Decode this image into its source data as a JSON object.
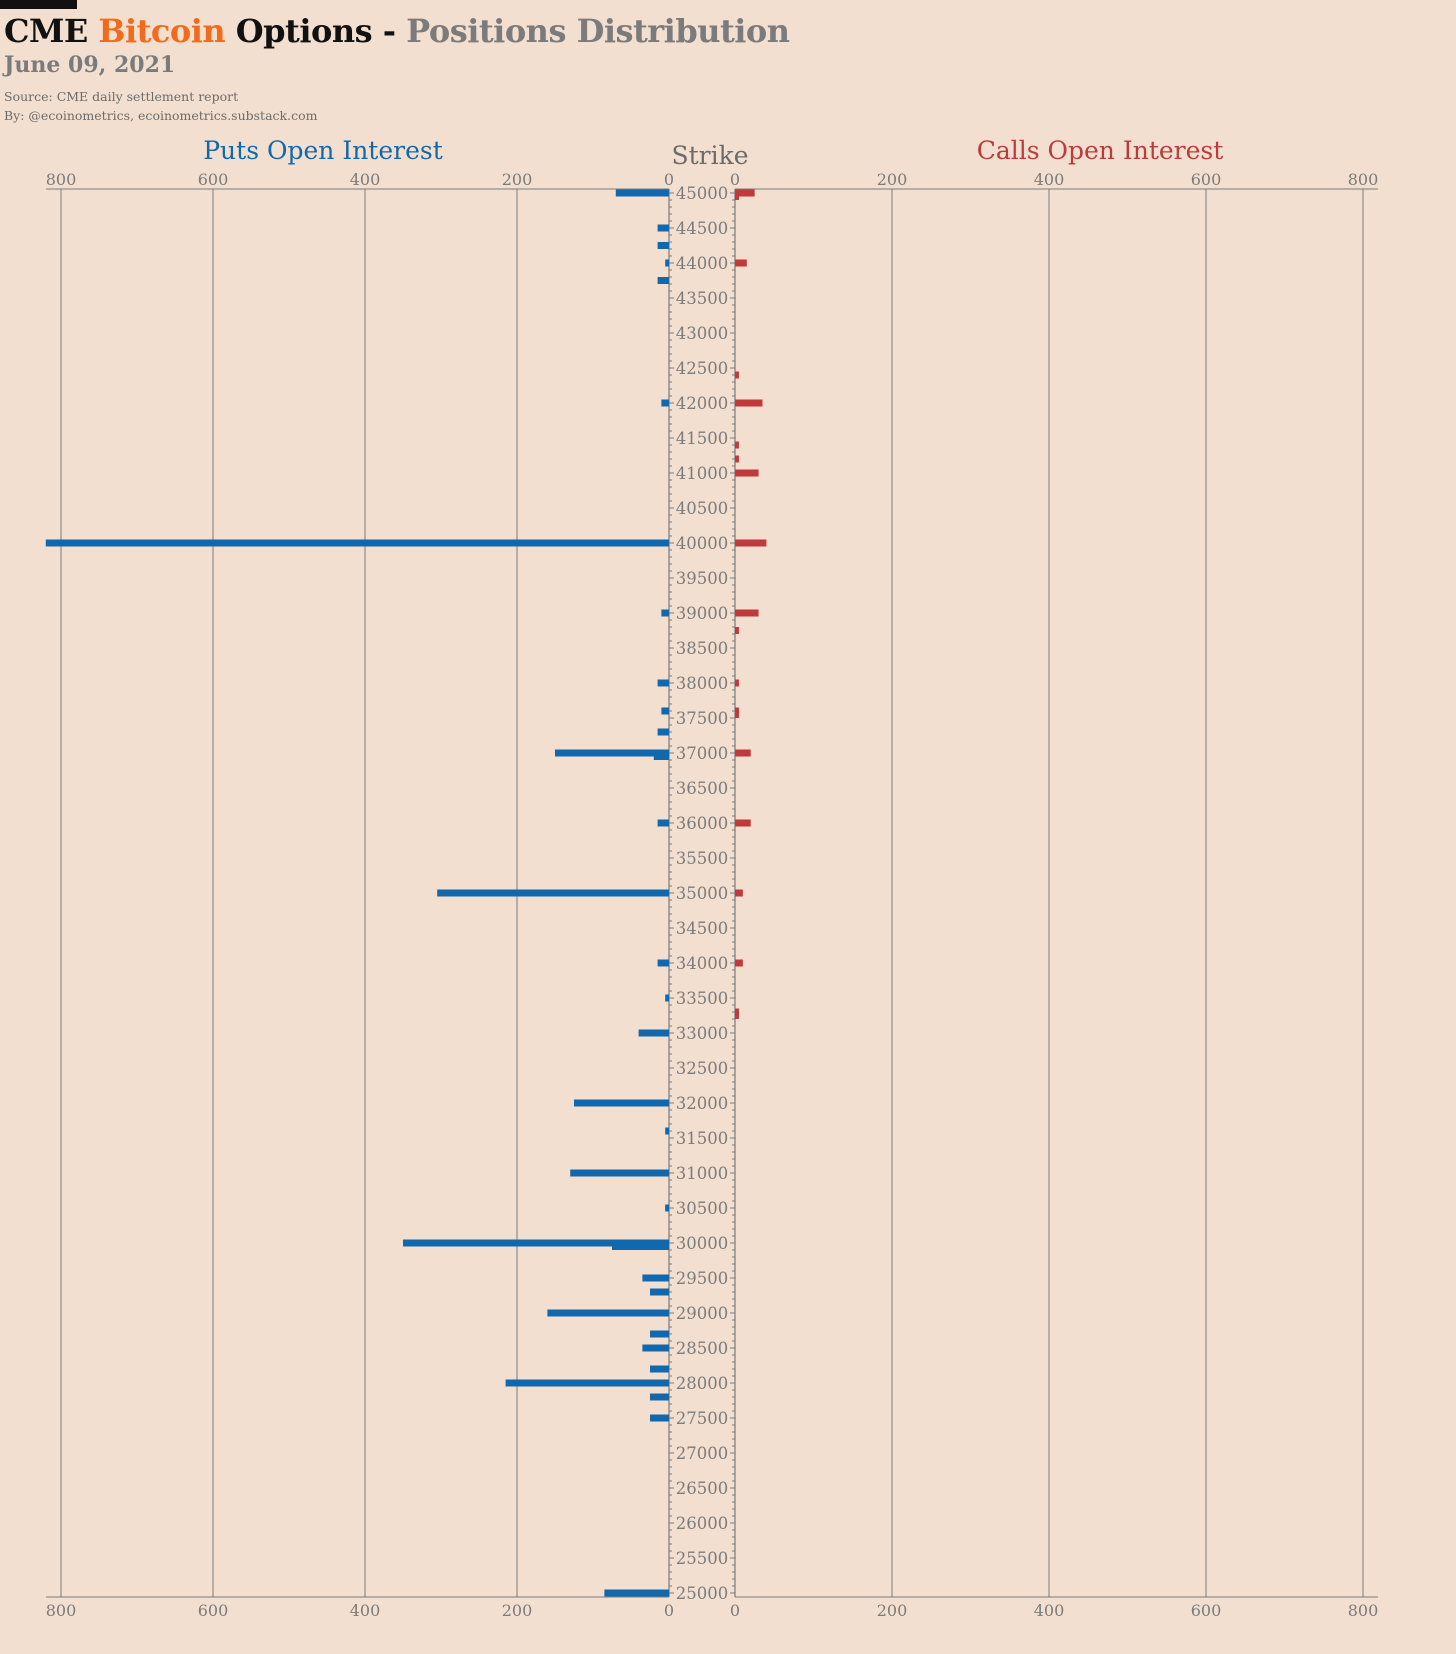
{
  "header": {
    "title_part1": "CME ",
    "title_part2": "Bitcoin",
    "title_part3": " Options - ",
    "title_part4": "Positions Distribution",
    "date": "June 09, 2021",
    "source": "Source: CME daily settlement report",
    "byline": "By: @ecoinometrics, ecoinometrics.substack.com"
  },
  "colors": {
    "background": "#f2dfd0",
    "accent": "#f26a1b",
    "puts": "#1168ad",
    "calls": "#c0393b",
    "gray": "#7b7b7b"
  },
  "chart_data": {
    "type": "bar",
    "orientation": "horizontal-butterfly",
    "puts_title": "Puts Open Interest",
    "calls_title": "Calls Open Interest",
    "strike_label": "Strike",
    "xlim": [
      0,
      800
    ],
    "x_ticks": [
      0,
      200,
      400,
      600,
      800
    ],
    "ylim": [
      25000,
      45000
    ],
    "y_ticks": [
      45000,
      44500,
      44000,
      43500,
      43000,
      42500,
      42000,
      41500,
      41000,
      40500,
      40000,
      39500,
      39000,
      38500,
      38000,
      37500,
      37000,
      36500,
      36000,
      35500,
      35000,
      34500,
      34000,
      33500,
      33000,
      32500,
      32000,
      31500,
      31000,
      30500,
      30000,
      29500,
      29000,
      28500,
      28000,
      27500,
      27000,
      26500,
      26000,
      25500,
      25000
    ],
    "grid": true,
    "puts": [
      {
        "strike": 45000,
        "value": 70
      },
      {
        "strike": 44500,
        "value": 15
      },
      {
        "strike": 44250,
        "value": 15
      },
      {
        "strike": 44000,
        "value": 5
      },
      {
        "strike": 43750,
        "value": 15
      },
      {
        "strike": 42000,
        "value": 10
      },
      {
        "strike": 40000,
        "value": 820
      },
      {
        "strike": 39000,
        "value": 10
      },
      {
        "strike": 38000,
        "value": 15
      },
      {
        "strike": 37600,
        "value": 10
      },
      {
        "strike": 37300,
        "value": 15
      },
      {
        "strike": 37000,
        "value": 150
      },
      {
        "strike": 36950,
        "value": 20
      },
      {
        "strike": 36000,
        "value": 15
      },
      {
        "strike": 35000,
        "value": 305
      },
      {
        "strike": 34000,
        "value": 15
      },
      {
        "strike": 33500,
        "value": 5
      },
      {
        "strike": 33000,
        "value": 40
      },
      {
        "strike": 32000,
        "value": 125
      },
      {
        "strike": 31600,
        "value": 5
      },
      {
        "strike": 31000,
        "value": 130
      },
      {
        "strike": 30500,
        "value": 5
      },
      {
        "strike": 30000,
        "value": 350
      },
      {
        "strike": 29950,
        "value": 75
      },
      {
        "strike": 29500,
        "value": 35
      },
      {
        "strike": 29300,
        "value": 25
      },
      {
        "strike": 29000,
        "value": 160
      },
      {
        "strike": 28700,
        "value": 25
      },
      {
        "strike": 28500,
        "value": 35
      },
      {
        "strike": 28200,
        "value": 25
      },
      {
        "strike": 28000,
        "value": 215
      },
      {
        "strike": 27800,
        "value": 25
      },
      {
        "strike": 27500,
        "value": 25
      },
      {
        "strike": 25000,
        "value": 85
      }
    ],
    "calls": [
      {
        "strike": 45000,
        "value": 25
      },
      {
        "strike": 44950,
        "value": 5
      },
      {
        "strike": 44000,
        "value": 15
      },
      {
        "strike": 42400,
        "value": 5
      },
      {
        "strike": 42000,
        "value": 35
      },
      {
        "strike": 41400,
        "value": 5
      },
      {
        "strike": 41200,
        "value": 5
      },
      {
        "strike": 41000,
        "value": 30
      },
      {
        "strike": 40000,
        "value": 40
      },
      {
        "strike": 39000,
        "value": 30
      },
      {
        "strike": 38750,
        "value": 5
      },
      {
        "strike": 38000,
        "value": 5
      },
      {
        "strike": 37600,
        "value": 5
      },
      {
        "strike": 37550,
        "value": 5
      },
      {
        "strike": 37000,
        "value": 20
      },
      {
        "strike": 36000,
        "value": 20
      },
      {
        "strike": 35000,
        "value": 10
      },
      {
        "strike": 34000,
        "value": 10
      },
      {
        "strike": 33300,
        "value": 5
      },
      {
        "strike": 33250,
        "value": 5
      }
    ]
  }
}
